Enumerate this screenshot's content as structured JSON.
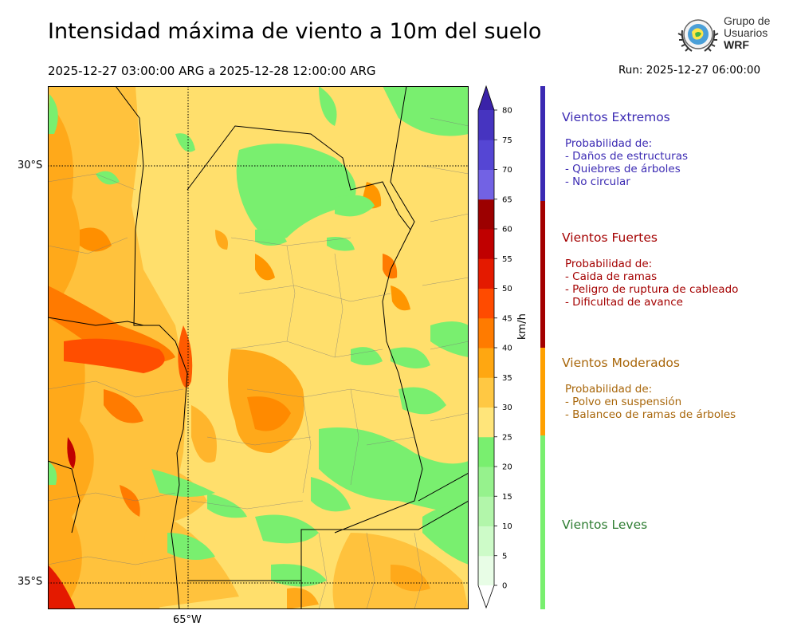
{
  "header": {
    "title": "Intensidad máxima de viento a 10m del suelo",
    "period": "2025-12-27 03:00:00 ARG  a  2025-12-28 12:00:00 ARG",
    "run": "Run: 2025-12-27 06:00:00"
  },
  "logo": {
    "line1": "Grupo de",
    "line2": "Usuarios",
    "line3": "WRF"
  },
  "map": {
    "lat_labels": [
      "30°S",
      "35°S"
    ],
    "lon_labels": [
      "65°W"
    ]
  },
  "colorbar": {
    "unit": "km/h",
    "ticks": [
      "0",
      "5",
      "10",
      "15",
      "20",
      "25",
      "30",
      "35",
      "40",
      "45",
      "50",
      "55",
      "60",
      "65",
      "70",
      "75",
      "80"
    ],
    "colors": [
      "#e8fde6",
      "#cdfbc8",
      "#b2f6aa",
      "#96f28d",
      "#79ef6f",
      "#ffe57a",
      "#ffc843",
      "#ffa711",
      "#ff7b00",
      "#ff4b00",
      "#e41a00",
      "#c00000",
      "#9c0000",
      "#7262e4",
      "#5546d4",
      "#4634c0",
      "#3a22a8"
    ]
  },
  "levels": [
    {
      "title": "Vientos Extremos",
      "color": "#3b2ab3",
      "bar_color": "#3b2ab3",
      "lines": [
        "Probabilidad de:",
        "- Daños de estructuras",
        "- Quiebres de árboles",
        "- No circular"
      ]
    },
    {
      "title": "Vientos Fuertes",
      "color": "#a40000",
      "bar_color": "#a40000",
      "lines": [
        "Probabilidad de:",
        "- Caida de ramas",
        "- Peligro de ruptura de cableado",
        "- Dificultad de avance"
      ]
    },
    {
      "title": "Vientos Moderados",
      "color": "#a8660a",
      "bar_color": "#ffa000",
      "lines": [
        "Probabilidad de:",
        "- Polvo en suspensión",
        "- Balanceo de ramas de árboles"
      ]
    },
    {
      "title": "Vientos Leves",
      "color": "#2e7d32",
      "bar_color": "#79ef6f",
      "lines": []
    }
  ]
}
